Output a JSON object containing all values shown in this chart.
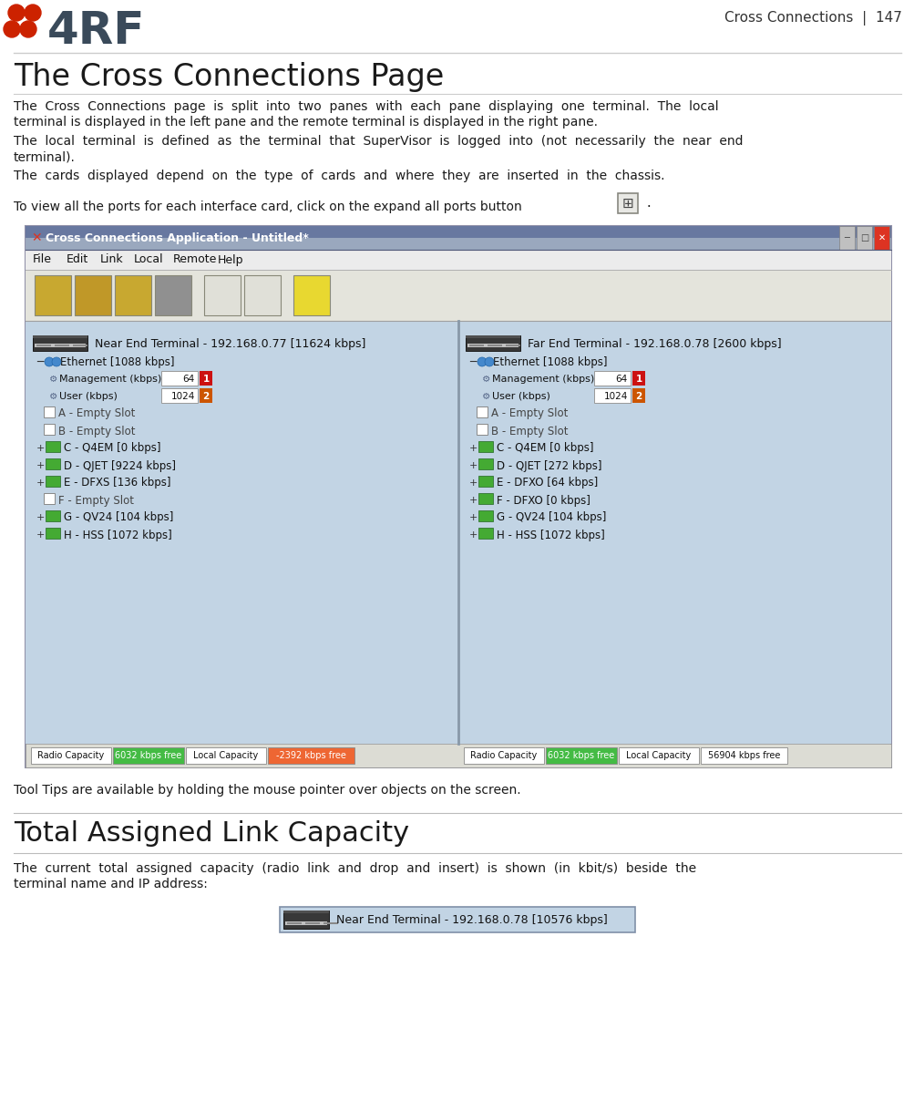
{
  "page_title": "Cross Connections  |  147",
  "section_title": "The Cross Connections Page",
  "para1a": "The  Cross  Connections  page  is  split  into  two  panes  with  each  pane  displaying  one  terminal.  The  local",
  "para1b": "terminal is displayed in the left pane and the remote terminal is displayed in the right pane.",
  "para2a": "The  local  terminal  is  defined  as  the  terminal  that  SuperVisor  is  logged  into  (not  necessarily  the  near  end",
  "para2b": "terminal).",
  "para3": "The  cards  displayed  depend  on  the  type  of  cards  and  where  they  are  inserted  in  the  chassis.",
  "para4": "To view all the ports for each interface card, click on the expand all ports button",
  "app_title": "Cross Connections Application - Untitled*",
  "menu_items": [
    "File",
    "Edit",
    "Link",
    "Local",
    "Remote",
    "Help"
  ],
  "left_terminal": "Near End Terminal - 192.168.0.77 [11624 kbps]",
  "right_terminal": "Far End Terminal - 192.168.0.78 [2600 kbps]",
  "left_items": [
    "Ethernet [1088 kbps]",
    "Management (kbps)",
    "64",
    "1",
    "User (kbps)",
    "1024",
    "2",
    "A - Empty Slot",
    "B - Empty Slot",
    "C - Q4EM [0 kbps]",
    "D - QJET [9224 kbps]",
    "E - DFXS [136 kbps]",
    "F - Empty Slot",
    "G - QV24 [104 kbps]",
    "H - HSS [1072 kbps]"
  ],
  "right_items": [
    "Ethernet [1088 kbps]",
    "Management (kbps)",
    "64",
    "1",
    "User (kbps)",
    "1024",
    "2",
    "A - Empty Slot",
    "B - Empty Slot",
    "C - Q4EM [0 kbps]",
    "D - QJET [272 kbps]",
    "E - DFXO [64 kbps]",
    "F - DFXO [0 kbps]",
    "G - QV24 [104 kbps]",
    "H - HSS [1072 kbps]"
  ],
  "left_bottom": [
    "Radio Capacity",
    "6032 kbps free",
    "Local Capacity",
    "-2392 kbps free"
  ],
  "right_bottom": [
    "Radio Capacity",
    "6032 kbps free",
    "Local Capacity",
    "56904 kbps free"
  ],
  "tooltip_text": "Tool Tips are available by holding the mouse pointer over objects on the screen.",
  "section2_title": "Total Assigned Link Capacity",
  "para5a": "The  current  total  assigned  capacity  (radio  link  and  drop  and  insert)  is  shown  (in  kbit/s)  beside  the",
  "para5b": "terminal name and IP address:",
  "bottom_label": "Near End Terminal - 192.168.0.78 [10576 kbps]",
  "bg_color": "#ffffff",
  "app_bg": "#c2d4e4",
  "app_outer": "#e8e8e8",
  "titlebar_start": "#7a8eaa",
  "titlebar_end": "#4a5e7a",
  "menu_bg": "#f0f0f0",
  "toolbar_bg": "#e0e0d8",
  "logo_red": "#cc2200",
  "logo_dark": "#3a4a5a",
  "text_color": "#1a1a1a",
  "section_color": "#1a1a1a",
  "page_num_color": "#333333",
  "green_card": "#44aa33",
  "badge1_color": "#cc1111",
  "badge2_color": "#cc5500",
  "status_green": "#44bb44",
  "status_red": "#ee6633",
  "divider_color": "#bbbbbb"
}
